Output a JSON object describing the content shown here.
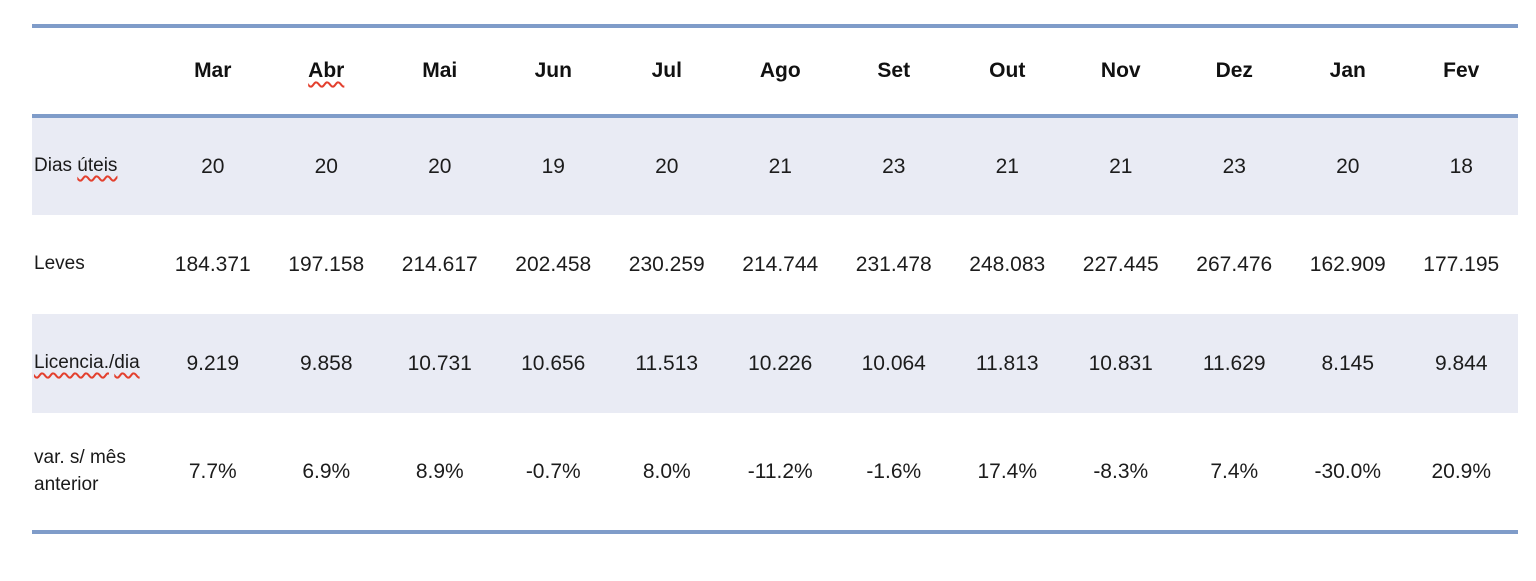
{
  "colors": {
    "border_blue": "#7F9CC9",
    "row_shade": "#E9EBF4",
    "text": "#1F1F1F",
    "squiggle_red": "#E3402E"
  },
  "table": {
    "months": [
      {
        "label": "Mar",
        "misspelled": false
      },
      {
        "label": "Abr",
        "misspelled": true
      },
      {
        "label": "Mai",
        "misspelled": false
      },
      {
        "label": "Jun",
        "misspelled": false
      },
      {
        "label": "Jul",
        "misspelled": false
      },
      {
        "label": "Ago",
        "misspelled": false
      },
      {
        "label": "Set",
        "misspelled": false
      },
      {
        "label": "Out",
        "misspelled": false
      },
      {
        "label": "Nov",
        "misspelled": false
      },
      {
        "label": "Dez",
        "misspelled": false
      },
      {
        "label": "Jan",
        "misspelled": false
      },
      {
        "label": "Fev",
        "misspelled": false
      }
    ],
    "rows": [
      {
        "label": "Dias úteis",
        "label_parts": [
          {
            "text": "Dias ",
            "misspelled": false
          },
          {
            "text": "úteis",
            "misspelled": true
          }
        ],
        "shaded": true,
        "values": [
          "20",
          "20",
          "20",
          "19",
          "20",
          "21",
          "23",
          "21",
          "21",
          "23",
          "20",
          "18"
        ]
      },
      {
        "label": "Leves",
        "label_parts": [
          {
            "text": "Leves",
            "misspelled": false
          }
        ],
        "shaded": false,
        "values": [
          "184.371",
          "197.158",
          "214.617",
          "202.458",
          "230.259",
          "214.744",
          "231.478",
          "248.083",
          "227.445",
          "267.476",
          "162.909",
          "177.195"
        ]
      },
      {
        "label": "Licencia./dia",
        "label_parts": [
          {
            "text": "Licencia.",
            "misspelled": true
          },
          {
            "text": "/",
            "misspelled": false
          },
          {
            "text": "dia",
            "misspelled": true
          }
        ],
        "shaded": true,
        "values": [
          "9.219",
          "9.858",
          "10.731",
          "10.656",
          "11.513",
          "10.226",
          "10.064",
          "11.813",
          "10.831",
          "11.629",
          "8.145",
          "9.844"
        ]
      },
      {
        "label": "var. s/ mês anterior",
        "label_parts": [
          {
            "text": "var. s/ mês anterior",
            "misspelled": false
          }
        ],
        "shaded": false,
        "values": [
          "7.7%",
          "6.9%",
          "8.9%",
          "-0.7%",
          "8.0%",
          "-11.2%",
          "-1.6%",
          "17.4%",
          "-8.3%",
          "7.4%",
          "-30.0%",
          "20.9%"
        ]
      }
    ]
  }
}
